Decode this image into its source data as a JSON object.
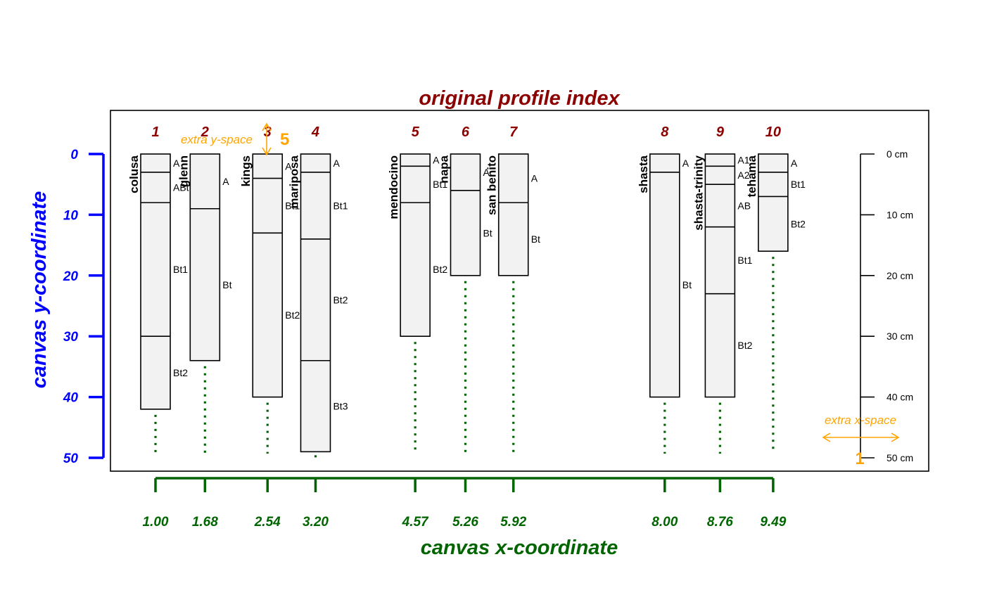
{
  "title": "original profile index",
  "x_axis_title": "canvas x-coordinate",
  "y_axis_title": "canvas y-coordinate",
  "annotations": {
    "extra_y_space": "extra y-space",
    "extra_y_value": "5",
    "extra_x_space": "extra x-space",
    "extra_x_value": "1"
  },
  "colors": {
    "title": "#8b0000",
    "x_axis": "#006400",
    "y_axis": "#0000ff",
    "annotation": "#ffa500",
    "profile_fill": "#f2f2f2"
  },
  "chart_data": {
    "type": "soil-profile-sketch",
    "y_ticks": [
      0,
      10,
      20,
      30,
      40,
      50
    ],
    "y_range": [
      0,
      50
    ],
    "depth_scale": {
      "ticks": [
        0,
        10,
        20,
        30,
        40,
        50
      ],
      "labels": [
        "0 cm",
        "10 cm",
        "20 cm",
        "30 cm",
        "40 cm",
        "50 cm"
      ]
    },
    "profiles": [
      {
        "index": "1",
        "name": "colusa",
        "x": 1.0,
        "x_label": "1.00",
        "horizons": [
          {
            "name": "A",
            "top": 0,
            "bottom": 3
          },
          {
            "name": "ABt",
            "top": 3,
            "bottom": 8
          },
          {
            "name": "Bt1",
            "top": 8,
            "bottom": 30
          },
          {
            "name": "Bt2",
            "top": 30,
            "bottom": 42
          }
        ]
      },
      {
        "index": "2",
        "name": "glenn",
        "x": 1.68,
        "x_label": "1.68",
        "horizons": [
          {
            "name": "A",
            "top": 0,
            "bottom": 9
          },
          {
            "name": "Bt",
            "top": 9,
            "bottom": 34
          }
        ]
      },
      {
        "index": "3",
        "name": "kings",
        "x": 2.54,
        "x_label": "2.54",
        "horizons": [
          {
            "name": "A",
            "top": 0,
            "bottom": 4
          },
          {
            "name": "Bt1",
            "top": 4,
            "bottom": 13
          },
          {
            "name": "Bt2",
            "top": 13,
            "bottom": 40
          }
        ]
      },
      {
        "index": "4",
        "name": "mariposa",
        "x": 3.2,
        "x_label": "3.20",
        "horizons": [
          {
            "name": "A",
            "top": 0,
            "bottom": 3
          },
          {
            "name": "Bt1",
            "top": 3,
            "bottom": 14
          },
          {
            "name": "Bt2",
            "top": 14,
            "bottom": 34
          },
          {
            "name": "Bt3",
            "top": 34,
            "bottom": 49
          }
        ]
      },
      {
        "index": "5",
        "name": "mendocino",
        "x": 4.57,
        "x_label": "4.57",
        "horizons": [
          {
            "name": "A",
            "top": 0,
            "bottom": 2
          },
          {
            "name": "Bt1",
            "top": 2,
            "bottom": 8
          },
          {
            "name": "Bt2",
            "top": 8,
            "bottom": 30
          }
        ]
      },
      {
        "index": "6",
        "name": "napa",
        "x": 5.26,
        "x_label": "5.26",
        "horizons": [
          {
            "name": "A",
            "top": 0,
            "bottom": 6
          },
          {
            "name": "Bt",
            "top": 6,
            "bottom": 20
          }
        ]
      },
      {
        "index": "7",
        "name": "san benito",
        "x": 5.92,
        "x_label": "5.92",
        "horizons": [
          {
            "name": "A",
            "top": 0,
            "bottom": 8
          },
          {
            "name": "Bt",
            "top": 8,
            "bottom": 20
          }
        ]
      },
      {
        "index": "8",
        "name": "shasta",
        "x": 8.0,
        "x_label": "8.00",
        "horizons": [
          {
            "name": "A",
            "top": 0,
            "bottom": 3
          },
          {
            "name": "Bt",
            "top": 3,
            "bottom": 40
          }
        ]
      },
      {
        "index": "9",
        "name": "shasta-trinity",
        "x": 8.76,
        "x_label": "8.76",
        "horizons": [
          {
            "name": "A1",
            "top": 0,
            "bottom": 2
          },
          {
            "name": "A2",
            "top": 2,
            "bottom": 5
          },
          {
            "name": "AB",
            "top": 5,
            "bottom": 12
          },
          {
            "name": "Bt1",
            "top": 12,
            "bottom": 23
          },
          {
            "name": "Bt2",
            "top": 23,
            "bottom": 40
          }
        ]
      },
      {
        "index": "10",
        "name": "tehama",
        "x": 9.49,
        "x_label": "9.49",
        "horizons": [
          {
            "name": "A",
            "top": 0,
            "bottom": 3
          },
          {
            "name": "Bt1",
            "top": 3,
            "bottom": 7
          },
          {
            "name": "Bt2",
            "top": 7,
            "bottom": 16
          }
        ]
      }
    ]
  }
}
